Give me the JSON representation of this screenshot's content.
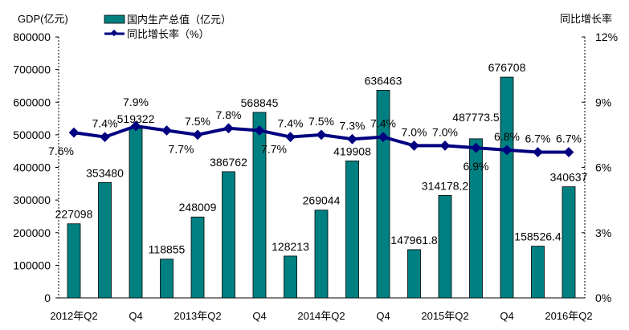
{
  "chart_data": {
    "type": "bar+line",
    "left_axis_title": "GDP(亿元)",
    "right_axis_title": "同比增长率",
    "left_ylim": [
      0,
      800000
    ],
    "left_ticks": [
      "0",
      "100000",
      "200000",
      "300000",
      "400000",
      "500000",
      "600000",
      "700000",
      "800000"
    ],
    "right_ylim": [
      0,
      12
    ],
    "right_ticks": [
      "0%",
      "3%",
      "6%",
      "9%",
      "12%"
    ],
    "categories": [
      "2012Q2",
      "2012Q3",
      "2012Q4",
      "2013Q1",
      "2013Q2",
      "2013Q3",
      "2013Q4",
      "2014Q1",
      "2014Q2",
      "2014Q3",
      "2014Q4",
      "2015Q1",
      "2015Q2",
      "2015Q3",
      "2015Q4",
      "2016Q1",
      "2016Q2"
    ],
    "x_tick_labels": [
      "2012年Q2",
      "",
      "Q4",
      "",
      "2013年Q2",
      "",
      "Q4",
      "",
      "2014年Q2",
      "",
      "Q4",
      "",
      "2015年Q2",
      "",
      "Q4",
      "",
      "2016年Q2"
    ],
    "series": [
      {
        "name": "国内生产总值（亿元）",
        "type": "bar",
        "axis": "left",
        "color": "#008080",
        "values": [
          227098,
          353480,
          519322,
          118855,
          248009,
          386762,
          568845,
          128213,
          269044,
          419908,
          636463,
          147961.8,
          314178.2,
          487773.5,
          676708,
          158526.4,
          340637
        ],
        "labels": [
          "227098",
          "353480",
          "519322",
          "118855",
          "248009",
          "386762",
          "568845",
          "128213",
          "269044",
          "419908",
          "636463",
          "147961.8",
          "314178.2",
          "487773.5",
          "676708",
          "158526.4",
          "340637"
        ]
      },
      {
        "name": "同比增长率（%）",
        "type": "line",
        "axis": "right",
        "color": "#000080",
        "values": [
          7.6,
          7.4,
          7.9,
          7.7,
          7.5,
          7.8,
          7.7,
          7.4,
          7.5,
          7.3,
          7.4,
          7.0,
          7.0,
          6.9,
          6.8,
          6.7,
          6.7
        ],
        "labels": [
          "7.6%",
          "7.4%",
          "7.9%",
          "7.7%",
          "7.5%",
          "7.8%",
          "7.7%",
          "7.4%",
          "7.5%",
          "7.3%",
          "7.4%",
          "7.0%",
          "7.0%",
          "6.9%",
          "6.8%",
          "6.7%",
          "6.7%"
        ]
      }
    ],
    "legend_placement": "top-center",
    "grid": false
  }
}
